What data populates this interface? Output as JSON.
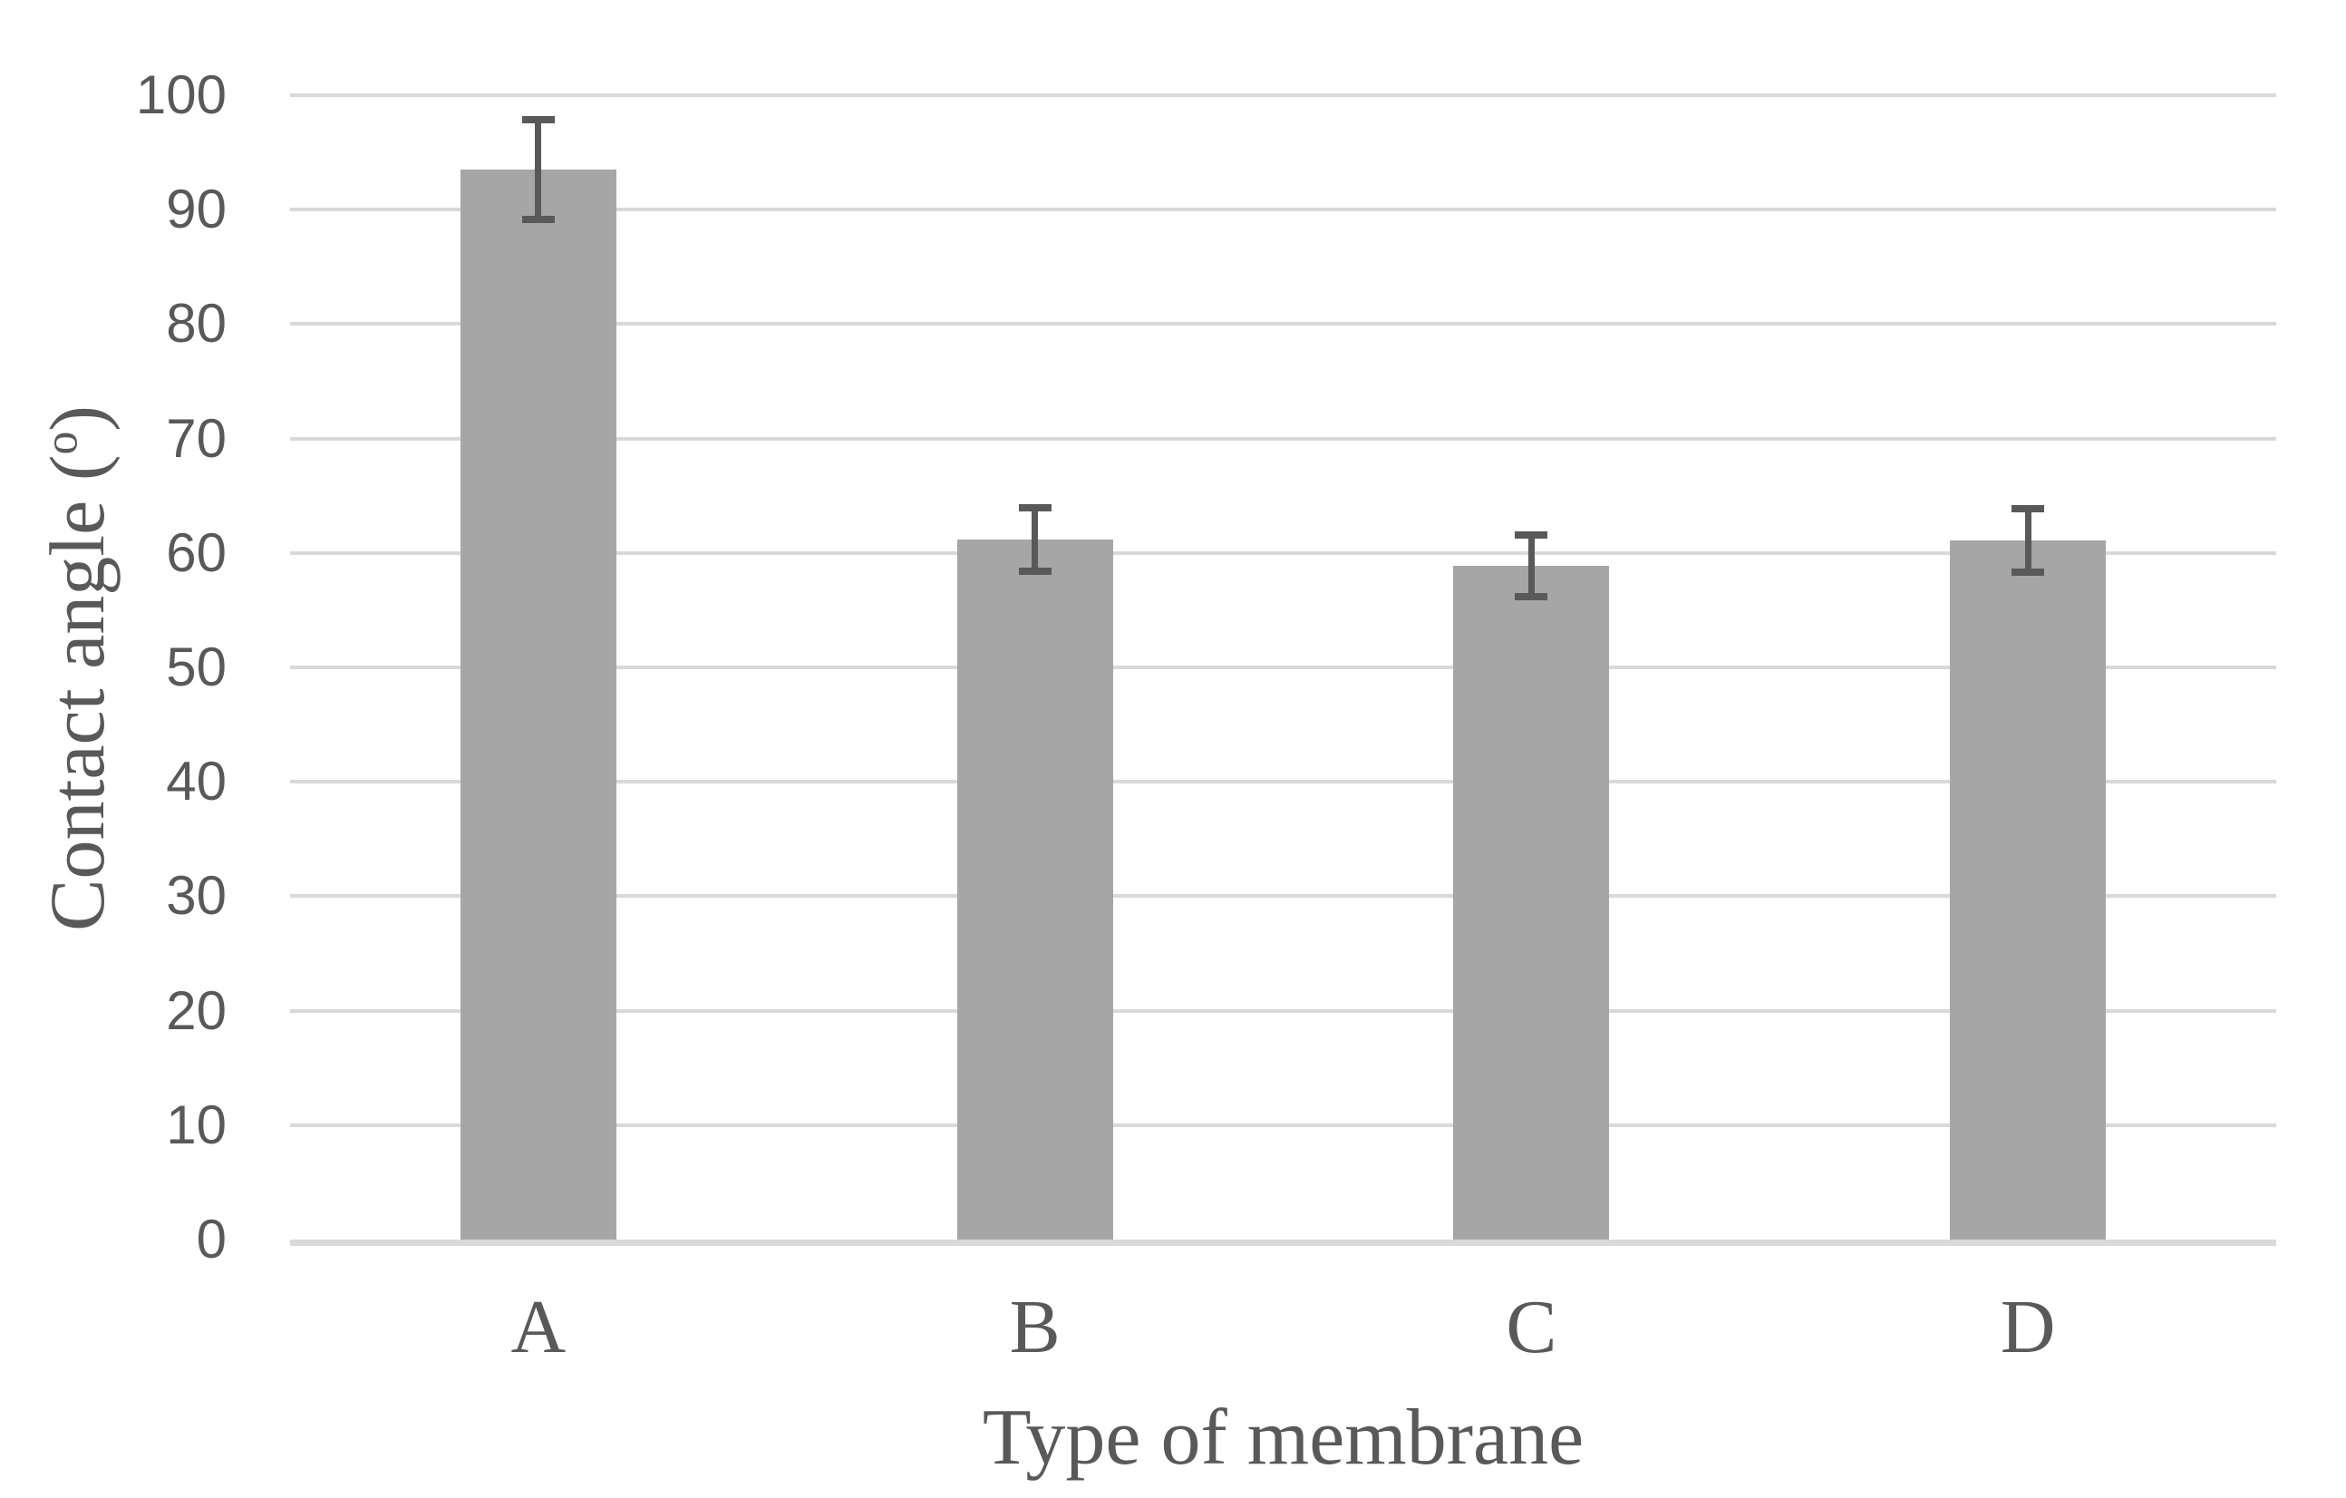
{
  "chart_data": {
    "type": "bar",
    "title": "",
    "categories": [
      "A",
      "B",
      "C",
      "D"
    ],
    "series": [
      {
        "name": "Contact angle",
        "values": [
          93.5,
          61.2,
          58.9,
          61.1
        ],
        "error_bars": [
          4.7,
          3.1,
          3.0,
          3.1
        ]
      }
    ],
    "xlabel": "Type of membrane",
    "ylabel": "Contact angle (o)",
    "ylabel_parts": {
      "main": "Contact angle (",
      "sup": "o",
      "close": ")"
    },
    "ylim": [
      0,
      100
    ],
    "yticks": [
      0,
      10,
      20,
      30,
      40,
      50,
      60,
      70,
      80,
      90,
      100
    ],
    "grid": "horizontal",
    "legend_position": "none",
    "colors": {
      "bar_fill": "#a6a6a6",
      "error_bar": "#595959",
      "gridline": "#d9d9d9",
      "axis_line": "#d9d9d9",
      "text": "#595959",
      "background": "#ffffff"
    }
  }
}
